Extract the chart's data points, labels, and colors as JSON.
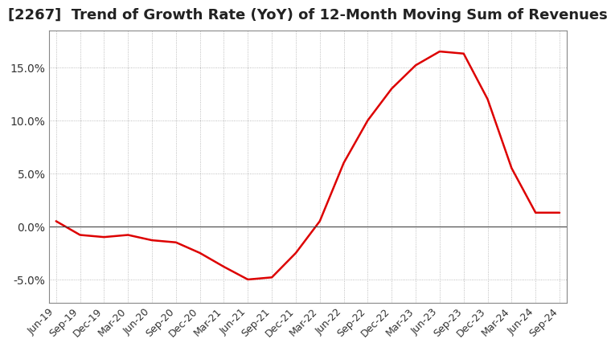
{
  "title": "[2267]  Trend of Growth Rate (YoY) of 12-Month Moving Sum of Revenues",
  "title_fontsize": 13,
  "line_color": "#dd0000",
  "background_color": "#ffffff",
  "plot_bg_color": "#ffffff",
  "grid_color": "#aaaaaa",
  "zero_line_color": "#444444",
  "border_color": "#888888",
  "ylim": [
    -0.072,
    0.185
  ],
  "yticks": [
    -0.05,
    0.0,
    0.05,
    0.1,
    0.15
  ],
  "ytick_labels": [
    "-5.0%",
    "0.0%",
    "5.0%",
    "10.0%",
    "15.0%"
  ],
  "x_labels": [
    "Jun-19",
    "Sep-19",
    "Dec-19",
    "Mar-20",
    "Jun-20",
    "Sep-20",
    "Dec-20",
    "Mar-21",
    "Jun-21",
    "Sep-21",
    "Dec-21",
    "Mar-22",
    "Jun-22",
    "Sep-22",
    "Dec-22",
    "Mar-23",
    "Jun-23",
    "Sep-23",
    "Dec-23",
    "Mar-24",
    "Jun-24",
    "Sep-24"
  ],
  "data": [
    [
      0,
      0.005
    ],
    [
      1,
      -0.008
    ],
    [
      2,
      -0.01
    ],
    [
      3,
      -0.008
    ],
    [
      4,
      -0.013
    ],
    [
      5,
      -0.015
    ],
    [
      6,
      -0.025
    ],
    [
      7,
      -0.038
    ],
    [
      8,
      -0.05
    ],
    [
      9,
      -0.048
    ],
    [
      10,
      -0.025
    ],
    [
      11,
      0.005
    ],
    [
      12,
      0.06
    ],
    [
      13,
      0.1
    ],
    [
      14,
      0.13
    ],
    [
      15,
      0.152
    ],
    [
      16,
      0.165
    ],
    [
      17,
      0.163
    ],
    [
      18,
      0.12
    ],
    [
      19,
      0.055
    ],
    [
      20,
      0.013
    ],
    [
      21,
      0.013
    ]
  ]
}
